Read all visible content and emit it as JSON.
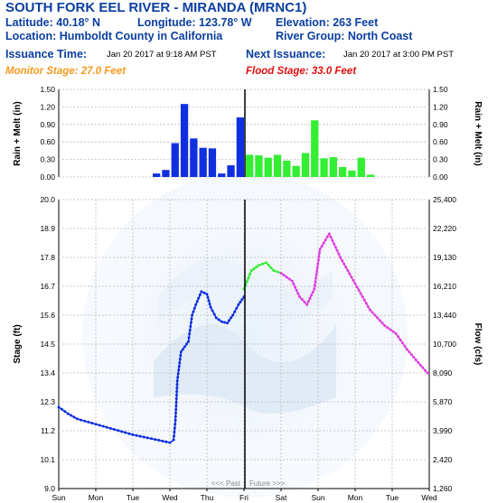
{
  "header": {
    "title": "SOUTH FORK EEL RIVER - MIRANDA (MRNC1)",
    "latitude": "Latitude: 40.18° N",
    "longitude": "Longitude: 123.78° W",
    "elevation": "Elevation: 263 Feet",
    "location": "Location: Humboldt County in California",
    "river_group": "River Group: North Coast",
    "issuance_label": "Issuance Time:",
    "issuance_value": "Jan 20 2017 at 9:18 AM PST",
    "next_label": "Next Issuance:",
    "next_value": "Jan 20 2017 at 3:00 PM PST",
    "monitor_stage": "Monitor Stage: 27.0 Feet",
    "flood_stage": "Flood Stage: 33.0 Feet"
  },
  "colors": {
    "header_blue": "#0b3fa0",
    "observed": "#1030e0",
    "forecast_rain": "#33ee33",
    "forecast_stage": "#e040e0",
    "monitor": "#f59a1e",
    "flood": "#e01010",
    "divider": "#000000"
  },
  "chart_data": [
    {
      "type": "bar",
      "name": "rain-melt",
      "ylabel_left": "Rain + Melt (in)",
      "ylabel_right": "Rain + Melt (in)",
      "ylim": [
        0,
        1.5
      ],
      "yticks": [
        "0.00",
        "0.30",
        "0.60",
        "0.90",
        "1.20",
        "1.50"
      ],
      "observed_values": [
        0.06,
        0.12,
        0.58,
        1.25,
        0.66,
        0.5,
        0.49,
        0.06,
        0.2,
        1.02
      ],
      "forecast_values": [
        0.38,
        0.37,
        0.33,
        0.38,
        0.28,
        0.19,
        0.41,
        0.97,
        0.32,
        0.34,
        0.17,
        0.11,
        0.33,
        0.04
      ]
    },
    {
      "type": "line",
      "name": "stage-flow",
      "ylabel_left": "Stage (ft)",
      "ylabel_right": "Flow (cfs)",
      "ylim": [
        9.0,
        20.0
      ],
      "yticks_left": [
        "9.0",
        "10.1",
        "11.2",
        "12.3",
        "13.4",
        "14.5",
        "15.6",
        "16.7",
        "17.8",
        "18.9",
        "20.0"
      ],
      "yticks_right": [
        "1,260",
        "2,420",
        "3,990",
        "5,870",
        "8,090",
        "10,700",
        "13,440",
        "16,210",
        "19,130",
        "22,220",
        "25,400"
      ],
      "xticks": [
        "Sun",
        "Mon",
        "Tue",
        "Wed",
        "Thu",
        "Fri",
        "Sat",
        "Sun",
        "Mon",
        "Tue",
        "Wed"
      ],
      "xlim_days": [
        0,
        10
      ],
      "observed": {
        "x": [
          0,
          0.25,
          0.5,
          1.0,
          1.5,
          2.0,
          2.5,
          3.0,
          3.1,
          3.15,
          3.2,
          3.3,
          3.4,
          3.5,
          3.6,
          3.7,
          3.85,
          4.0,
          4.1,
          4.25,
          4.4,
          4.55,
          4.7,
          4.85,
          5.0
        ],
        "y": [
          12.1,
          11.85,
          11.65,
          11.45,
          11.25,
          11.05,
          10.9,
          10.75,
          10.85,
          11.6,
          13.1,
          14.2,
          14.4,
          14.6,
          15.6,
          16.0,
          16.5,
          16.4,
          15.9,
          15.5,
          15.35,
          15.3,
          15.6,
          16.0,
          16.3
        ]
      },
      "forecast_green": {
        "x": [
          5.0,
          5.2,
          5.4,
          5.6,
          5.8,
          6.0
        ],
        "y": [
          16.6,
          17.3,
          17.5,
          17.6,
          17.3,
          17.2
        ]
      },
      "forecast_magenta": {
        "x": [
          6.0,
          6.3,
          6.5,
          6.7,
          6.9,
          7.05,
          7.3,
          7.6,
          8.0,
          8.4,
          8.8,
          9.1,
          9.4,
          9.7,
          9.95
        ],
        "y": [
          17.2,
          16.9,
          16.3,
          16.0,
          16.6,
          18.1,
          18.7,
          17.8,
          16.8,
          15.8,
          15.2,
          14.9,
          14.3,
          13.8,
          13.4
        ]
      },
      "past_label": "<<< Past",
      "future_label": "Future >>>"
    }
  ]
}
